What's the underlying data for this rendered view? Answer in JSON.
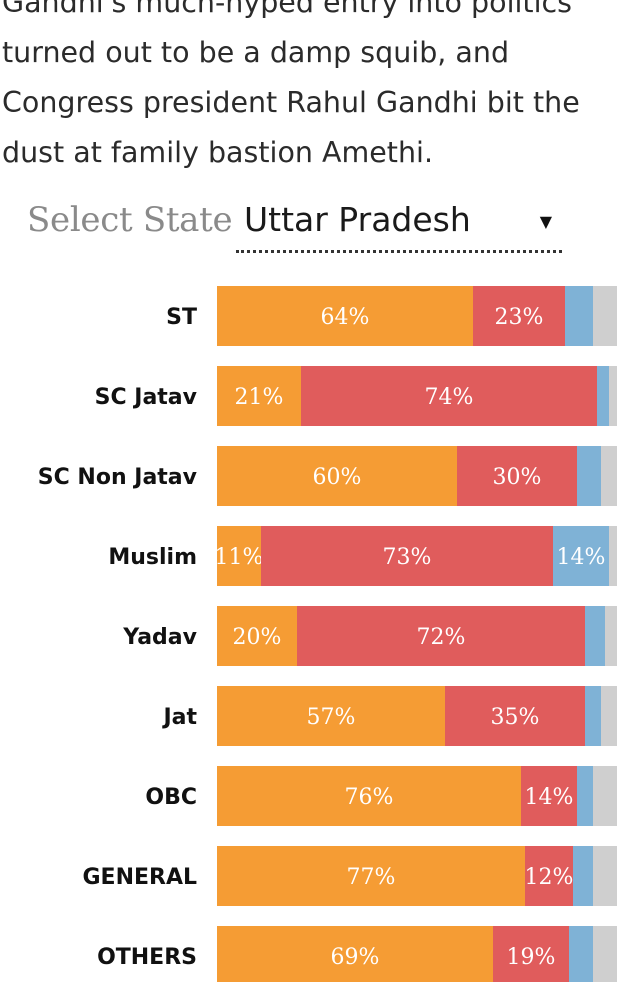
{
  "intro": {
    "line1": "Gandhi's much-hyped entry into politics",
    "line2": "turned out to be a damp squib, and",
    "line3": "Congress president Rahul Gandhi bit the",
    "line4": "dust at family bastion Amethi."
  },
  "selector": {
    "label": "Select State",
    "value": "Uttar Pradesh",
    "caret_icon": "caret-down-icon"
  },
  "chart_data": {
    "type": "bar",
    "orientation": "horizontal",
    "stacked": true,
    "normalized": true,
    "categories": [
      "ST",
      "SC Jatav",
      "SC Non Jatav",
      "Muslim",
      "Yadav",
      "Jat",
      "OBC",
      "GENERAL",
      "OTHERS"
    ],
    "series": [
      {
        "name": "orange",
        "color": "#f59c34",
        "values": [
          64,
          21,
          60,
          11,
          20,
          57,
          76,
          77,
          69
        ],
        "labels": [
          "64%",
          "21%",
          "60%",
          "11%",
          "20%",
          "57%",
          "76%",
          "77%",
          "69%"
        ]
      },
      {
        "name": "red",
        "color": "#e05c5c",
        "values": [
          23,
          74,
          30,
          73,
          72,
          35,
          14,
          12,
          19
        ],
        "labels": [
          "23%",
          "74%",
          "30%",
          "73%",
          "72%",
          "35%",
          "14%",
          "12%",
          "19%"
        ]
      },
      {
        "name": "blue",
        "color": "#7fb2d6",
        "values": [
          7,
          3,
          6,
          14,
          5,
          4,
          4,
          5,
          6
        ],
        "labels": [
          "",
          "",
          "",
          "14%",
          "",
          "",
          "",
          "",
          ""
        ]
      },
      {
        "name": "gray",
        "color": "#cfcfcf",
        "values": [
          6,
          2,
          4,
          2,
          3,
          4,
          6,
          6,
          6
        ],
        "labels": [
          "",
          "",
          "",
          "",
          "",
          "",
          "",
          "",
          ""
        ]
      }
    ],
    "xlim": [
      0,
      100
    ],
    "title": "",
    "xlabel": "",
    "ylabel": ""
  }
}
